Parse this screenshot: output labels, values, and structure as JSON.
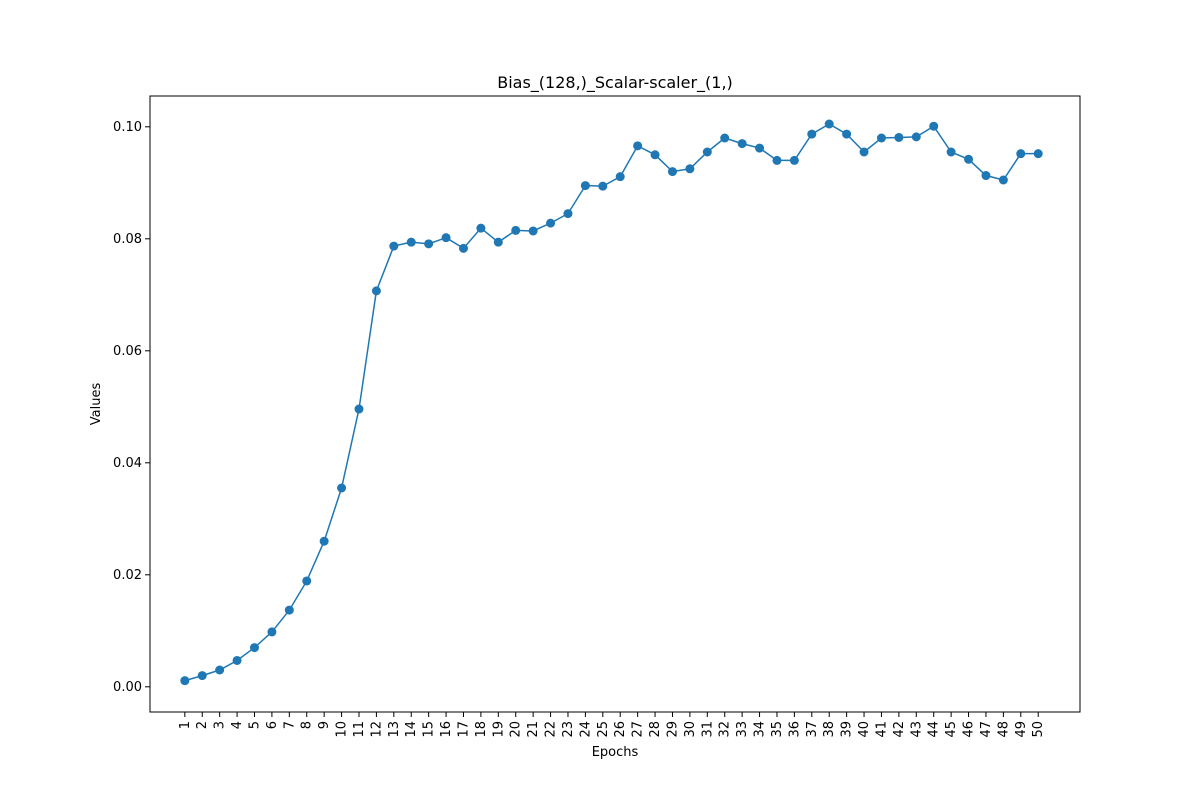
{
  "chart_data": {
    "type": "line",
    "title": "Bias_(128,)_Scalar-scaler_(1,)",
    "xlabel": "Epochs",
    "ylabel": "Values",
    "x": [
      1,
      2,
      3,
      4,
      5,
      6,
      7,
      8,
      9,
      10,
      11,
      12,
      13,
      14,
      15,
      16,
      17,
      18,
      19,
      20,
      21,
      22,
      23,
      24,
      25,
      26,
      27,
      28,
      29,
      30,
      31,
      32,
      33,
      34,
      35,
      36,
      37,
      38,
      39,
      40,
      41,
      42,
      43,
      44,
      45,
      46,
      47,
      48,
      49,
      50
    ],
    "y_ticks": [
      "0.00",
      "0.02",
      "0.04",
      "0.06",
      "0.08",
      "0.10"
    ],
    "ylim": [
      -0.0045,
      0.1055
    ],
    "xlim": [
      -1.0,
      52.4
    ],
    "grid": false,
    "marker": "circle",
    "series": [
      {
        "color": "#1f77b4",
        "values": [
          0.0011,
          0.002,
          0.003,
          0.0047,
          0.007,
          0.0098,
          0.0137,
          0.0189,
          0.026,
          0.0355,
          0.0496,
          0.0707,
          0.0787,
          0.0794,
          0.0791,
          0.0802,
          0.0783,
          0.0819,
          0.0794,
          0.0815,
          0.0814,
          0.0828,
          0.0845,
          0.0895,
          0.0894,
          0.0911,
          0.0966,
          0.095,
          0.092,
          0.0925,
          0.0955,
          0.098,
          0.097,
          0.0962,
          0.094,
          0.094,
          0.0987,
          0.1005,
          0.0987,
          0.0955,
          0.098,
          0.0981,
          0.0982,
          0.1001,
          0.0955,
          0.0942,
          0.0913,
          0.0905,
          0.0952,
          0.0952
        ]
      }
    ]
  }
}
